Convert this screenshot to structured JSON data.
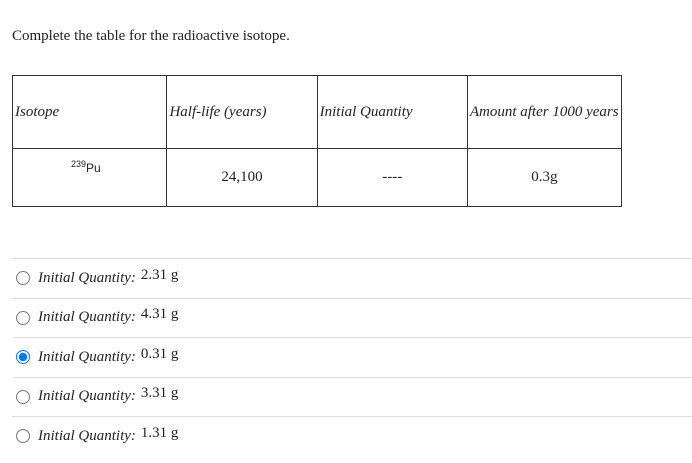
{
  "question": "Complete the table for the radioactive isotope.",
  "table": {
    "headers": [
      "Isotope",
      "Half-life (years)",
      "Initial Quantity",
      "Amount after 1000 years"
    ],
    "rows": [
      [
        {
          "mass": "239",
          "symbol": "Pu"
        },
        "24,100",
        "----",
        "0.3g"
      ]
    ]
  },
  "options": [
    {
      "label": "Initial Quantity:",
      "value": "2.31 g"
    },
    {
      "label": "Initial Quantity:",
      "value": "4.31 g"
    },
    {
      "label": "Initial Quantity:",
      "value": "0.31 g"
    },
    {
      "label": "Initial Quantity:",
      "value": "3.31 g"
    },
    {
      "label": "Initial Quantity:",
      "value": "1.31 g"
    }
  ],
  "selected": 2
}
